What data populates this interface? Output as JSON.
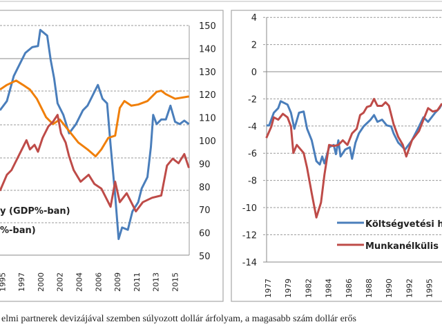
{
  "caption": "elmi partnerek devizájával szemben súlyozott dollár árfolyam, a magasabb szám dollár erős",
  "chart_data": [
    {
      "type": "line",
      "title": "",
      "x_unit": "category tick index",
      "ticks": [
        {
          "index": 0,
          "label": "1995"
        },
        {
          "index": 1,
          "label": "1997"
        },
        {
          "index": 2,
          "label": "2000"
        },
        {
          "index": 3,
          "label": "2002"
        },
        {
          "index": 4,
          "label": "2004"
        },
        {
          "index": 5,
          "label": "2006"
        },
        {
          "index": 6,
          "label": "2009"
        },
        {
          "index": 7,
          "label": "2011"
        },
        {
          "index": 8,
          "label": "2013"
        },
        {
          "index": 9,
          "label": "2015"
        }
      ],
      "y_right_ticks": [
        "150",
        "140",
        "130",
        "120",
        "110",
        "100",
        "90",
        "80",
        "70",
        "60",
        "50"
      ],
      "ylim_right": [
        50,
        150
      ],
      "legend": [
        "y (GDP%-ban)",
        "%-ban)"
      ],
      "series": [
        {
          "name": "blue",
          "color": "#4a7ebb",
          "x": [
            -0.12,
            0.24,
            0.6,
            0.96,
            1.2,
            1.56,
            1.86,
            1.98,
            2.34,
            2.52,
            2.7,
            2.88,
            3.18,
            3.48,
            3.84,
            4.2,
            4.44,
            4.68,
            4.98,
            5.22,
            5.46,
            5.64,
            5.88,
            6.06,
            6.24,
            6.54,
            6.78,
            7.08,
            7.26,
            7.56,
            7.74,
            7.86,
            8.04,
            8.28,
            8.52,
            8.76,
            9.0,
            9.24,
            9.48,
            9.72
          ],
          "y": [
            113.2,
            117.2,
            128.1,
            134.1,
            138.1,
            140.6,
            141.1,
            148.1,
            145.6,
            135.1,
            127.1,
            116.2,
            111.2,
            103.2,
            107.2,
            113.2,
            115.2,
            119.2,
            124.2,
            118.2,
            116.2,
            98.2,
            76.2,
            57.3,
            62.3,
            61.3,
            69.3,
            73.3,
            79.2,
            84.2,
            97.2,
            111.2,
            107.2,
            109.2,
            109.2,
            115.2,
            108.2,
            107.2,
            108.7,
            107.2
          ]
        },
        {
          "name": "orange",
          "color": "#f07f09",
          "x": [
            -0.12,
            0.24,
            0.72,
            1.08,
            1.44,
            1.8,
            2.28,
            2.64,
            3.0,
            3.48,
            3.96,
            4.44,
            4.86,
            5.16,
            5.52,
            5.88,
            6.12,
            6.36,
            6.72,
            7.08,
            7.56,
            8.04,
            8.28,
            8.52,
            9.0,
            9.72
          ],
          "y": [
            122.2,
            124.2,
            126.1,
            124.2,
            122.2,
            118.2,
            110.2,
            107.2,
            109.2,
            104.2,
            99.2,
            96.2,
            93.2,
            96.2,
            101.2,
            102.2,
            114.2,
            117.2,
            115.2,
            115.7,
            117.2,
            121.2,
            121.7,
            120.2,
            118.2,
            119.2
          ]
        },
        {
          "name": "red",
          "color": "#be4b48",
          "x": [
            -0.12,
            0.24,
            0.48,
            0.72,
            0.96,
            1.26,
            1.44,
            1.68,
            1.86,
            2.1,
            2.4,
            2.64,
            2.88,
            3.06,
            3.3,
            3.48,
            3.72,
            4.08,
            4.5,
            4.8,
            5.16,
            5.64,
            5.88,
            6.12,
            6.48,
            6.96,
            7.32,
            7.8,
            8.28,
            8.58,
            8.88,
            9.18,
            9.48,
            9.72
          ],
          "y": [
            78.2,
            85.2,
            87.2,
            91.2,
            95.2,
            100.2,
            96.2,
            98.2,
            95.2,
            101.2,
            106.2,
            108.2,
            111.2,
            103.2,
            99.2,
            93.2,
            87.2,
            82.2,
            85.2,
            81.2,
            79.2,
            71.3,
            82.2,
            73.3,
            77.2,
            69.3,
            73.3,
            75.2,
            76.2,
            89.2,
            92.2,
            90.2,
            94.2,
            88.2
          ]
        }
      ]
    },
    {
      "type": "line",
      "title": "",
      "x_unit": "category tick index",
      "ticks": [
        {
          "index": 0,
          "label": "1977"
        },
        {
          "index": 1,
          "label": "1979"
        },
        {
          "index": 2,
          "label": "1982"
        },
        {
          "index": 3,
          "label": "1984"
        },
        {
          "index": 4,
          "label": "1986"
        },
        {
          "index": 5,
          "label": "1988"
        },
        {
          "index": 6,
          "label": "1990"
        },
        {
          "index": 7,
          "label": "1992"
        },
        {
          "index": 8,
          "label": "1995"
        }
      ],
      "y_ticks": [
        "4",
        "2",
        "0",
        "-2",
        "-4",
        "-6",
        "-8",
        "-10",
        "-12",
        "-14"
      ],
      "ylim": [
        -14,
        4
      ],
      "legend": [
        "Költségvetési h",
        "Munkanélkülis"
      ],
      "series": [
        {
          "name": "Költségvetési h",
          "color": "#4a7ebb",
          "x": [
            -0.08,
            0.06,
            0.29,
            0.51,
            0.63,
            0.97,
            1.14,
            1.31,
            1.54,
            1.77,
            1.94,
            2.17,
            2.4,
            2.57,
            2.69,
            2.8,
            3.03,
            3.26,
            3.37,
            3.49,
            3.6,
            3.83,
            4.06,
            4.17,
            4.34,
            4.51,
            4.74,
            5.09,
            5.26,
            5.43,
            5.66,
            5.89,
            6.11,
            6.23,
            6.46,
            6.8,
            7.14,
            7.49,
            7.71,
            7.94,
            8.29,
            8.51,
            8.63
          ],
          "y": [
            -3.95,
            -3.95,
            -3.02,
            -2.68,
            -2.17,
            -2.42,
            -3.02,
            -4.2,
            -3.02,
            -2.93,
            -4.2,
            -5.05,
            -6.58,
            -6.83,
            -6.24,
            -6.75,
            -5.56,
            -5.39,
            -6.07,
            -5.05,
            -6.24,
            -5.73,
            -5.56,
            -6.41,
            -5.22,
            -4.54,
            -4.03,
            -3.53,
            -3.19,
            -3.69,
            -3.53,
            -3.95,
            -4.03,
            -4.54,
            -5.22,
            -5.73,
            -5.05,
            -4.03,
            -3.36,
            -3.69,
            -3.02,
            -2.68,
            -2.34
          ]
        },
        {
          "name": "Munkanélkülis",
          "color": "#be4b48",
          "x": [
            -0.08,
            0.17,
            0.29,
            0.51,
            0.74,
            0.97,
            1.14,
            1.26,
            1.43,
            1.77,
            1.94,
            2.17,
            2.4,
            2.63,
            2.8,
            3.03,
            3.26,
            3.49,
            3.71,
            3.94,
            4.17,
            4.4,
            4.57,
            4.74,
            4.91,
            5.09,
            5.26,
            5.43,
            5.66,
            5.83,
            6.0,
            6.23,
            6.46,
            6.69,
            6.86,
            7.14,
            7.49,
            7.71,
            7.94,
            8.17,
            8.4,
            8.63
          ],
          "y": [
            -4.88,
            -4.03,
            -3.36,
            -3.53,
            -3.1,
            -3.36,
            -4.03,
            -5.98,
            -5.39,
            -5.98,
            -7.08,
            -8.95,
            -10.73,
            -9.63,
            -7.59,
            -5.39,
            -5.47,
            -5.39,
            -5.05,
            -5.39,
            -4.54,
            -4.2,
            -3.19,
            -3.02,
            -2.59,
            -2.51,
            -2.0,
            -2.51,
            -2.51,
            -2.25,
            -2.51,
            -3.86,
            -4.8,
            -5.39,
            -6.24,
            -5.05,
            -4.37,
            -3.53,
            -2.68,
            -2.93,
            -2.85,
            -2.34
          ]
        }
      ]
    }
  ]
}
